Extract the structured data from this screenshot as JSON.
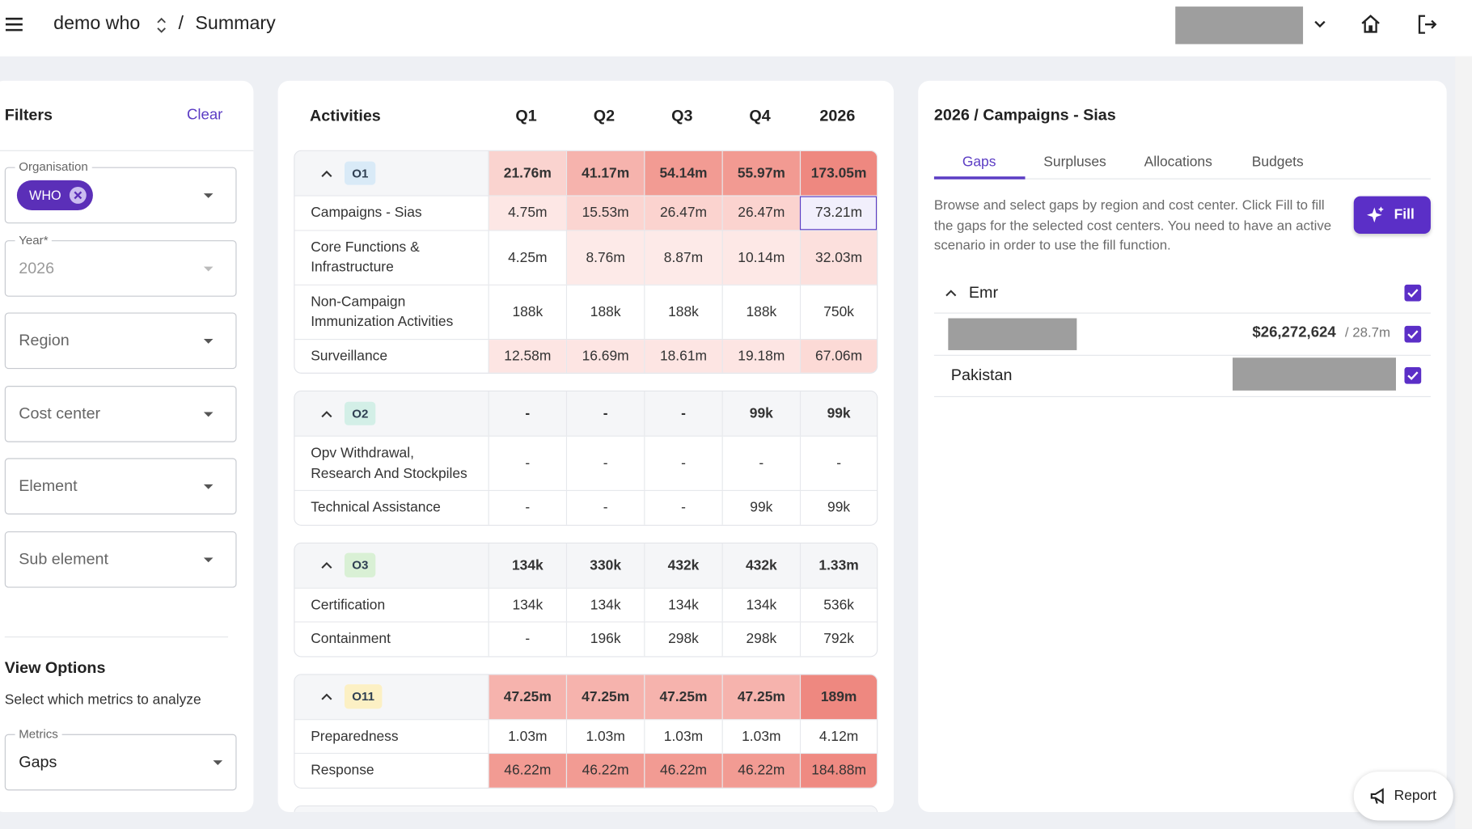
{
  "header": {
    "workspace": "demo who",
    "separator": "/",
    "page": "Summary"
  },
  "filters": {
    "title": "Filters",
    "clear": "Clear",
    "fields": [
      {
        "label": "Organisation",
        "chips": [
          "WHO"
        ]
      },
      {
        "label": "Year*",
        "value": "2026"
      },
      {
        "placeholder": "Region"
      },
      {
        "placeholder": "Cost center"
      },
      {
        "placeholder": "Element"
      },
      {
        "placeholder": "Sub element"
      }
    ],
    "view_options": {
      "title": "View Options",
      "description": "Select which metrics to analyze",
      "metrics": {
        "label": "Metrics",
        "value": "Gaps"
      }
    }
  },
  "table": {
    "columns": [
      "Activities",
      "Q1",
      "Q2",
      "Q3",
      "Q4",
      "2026"
    ],
    "selected": {
      "group": 0,
      "row": 0,
      "column": 4,
      "color": "#f1effc",
      "border": "#5b3cc4"
    },
    "groups": [
      {
        "code": "O1",
        "chip_color": "#d9eaf7",
        "totals": [
          "21.76m",
          "41.17m",
          "54.14m",
          "55.97m",
          "173.05m"
        ],
        "total_colors": [
          "#fad3cf",
          "#f6b3ad",
          "#f29b93",
          "#f29a92",
          "#ee8880"
        ],
        "rows": [
          {
            "name": "Campaigns - Sias",
            "values": [
              "4.75m",
              "15.53m",
              "26.47m",
              "26.47m",
              "73.21m"
            ],
            "colors": [
              "#fde7e5",
              "#fbd5d1",
              "#fbd3cf",
              "#fbd3cf",
              null
            ]
          },
          {
            "name": "Core Functions & Infrastructure",
            "values": [
              "4.25m",
              "8.76m",
              "8.87m",
              "10.14m",
              "32.03m"
            ],
            "colors": [
              null,
              "#fdeae8",
              "#fdeae8",
              "#fde8e6",
              "#fce0dd"
            ]
          },
          {
            "name": "Non-Campaign Immunization Activities",
            "values": [
              "188k",
              "188k",
              "188k",
              "188k",
              "750k"
            ],
            "colors": [
              null,
              null,
              null,
              null,
              null
            ]
          },
          {
            "name": "Surveillance",
            "values": [
              "12.58m",
              "16.69m",
              "18.61m",
              "19.18m",
              "67.06m"
            ],
            "colors": [
              "#fde5e3",
              "#fde5e3",
              "#fde5e3",
              "#fde5e3",
              "#fcdad6"
            ]
          }
        ]
      },
      {
        "code": "O2",
        "chip_color": "#d3efe7",
        "totals": [
          "-",
          "-",
          "-",
          "99k",
          "99k"
        ],
        "total_colors": [
          null,
          null,
          null,
          null,
          null
        ],
        "rows": [
          {
            "name": "Opv Withdrawal, Research And Stockpiles",
            "values": [
              "-",
              "-",
              "-",
              "-",
              "-"
            ],
            "colors": [
              null,
              null,
              null,
              null,
              null
            ]
          },
          {
            "name": "Technical Assistance",
            "values": [
              "-",
              "-",
              "-",
              "99k",
              "99k"
            ],
            "colors": [
              null,
              null,
              null,
              null,
              null
            ]
          }
        ]
      },
      {
        "code": "O3",
        "chip_color": "#d9f0d5",
        "totals": [
          "134k",
          "330k",
          "432k",
          "432k",
          "1.33m"
        ],
        "total_colors": [
          null,
          null,
          null,
          null,
          null
        ],
        "rows": [
          {
            "name": "Certification",
            "values": [
              "134k",
              "134k",
              "134k",
              "134k",
              "536k"
            ],
            "colors": [
              null,
              null,
              null,
              null,
              null
            ]
          },
          {
            "name": "Containment",
            "values": [
              "-",
              "196k",
              "298k",
              "298k",
              "792k"
            ],
            "colors": [
              null,
              null,
              null,
              null,
              null
            ]
          }
        ]
      },
      {
        "code": "O11",
        "chip_color": "#fcf0c4",
        "totals": [
          "47.25m",
          "47.25m",
          "47.25m",
          "47.25m",
          "189m"
        ],
        "total_colors": [
          "#f6b3ad",
          "#f6b3ad",
          "#f6b3ad",
          "#f6b3ad",
          "#ee8880"
        ],
        "rows": [
          {
            "name": "Preparedness",
            "values": [
              "1.03m",
              "1.03m",
              "1.03m",
              "1.03m",
              "4.12m"
            ],
            "colors": [
              null,
              null,
              null,
              null,
              null
            ]
          },
          {
            "name": "Response",
            "values": [
              "46.22m",
              "46.22m",
              "46.22m",
              "46.22m",
              "184.88m"
            ],
            "colors": [
              "#f29b93",
              "#f29b93",
              "#f29b93",
              "#f29b93",
              "#ef8a82"
            ]
          }
        ]
      }
    ]
  },
  "detail": {
    "title": "2026 / Campaigns - Sias",
    "tabs": [
      "Gaps",
      "Surpluses",
      "Allocations",
      "Budgets"
    ],
    "active_tab": 0,
    "description": "Browse and select gaps by region and cost center. Click Fill to fill the gaps for the selected cost centers. You need to have an active scenario in order to use the fill function.",
    "fill": "Fill",
    "region": {
      "name": "Emr",
      "checked": true
    },
    "items": [
      {
        "amount": "$26,272,624",
        "total": "/ 28.7m",
        "checked": true
      },
      {
        "name": "Pakistan",
        "checked": true
      }
    ]
  },
  "report": "Report"
}
